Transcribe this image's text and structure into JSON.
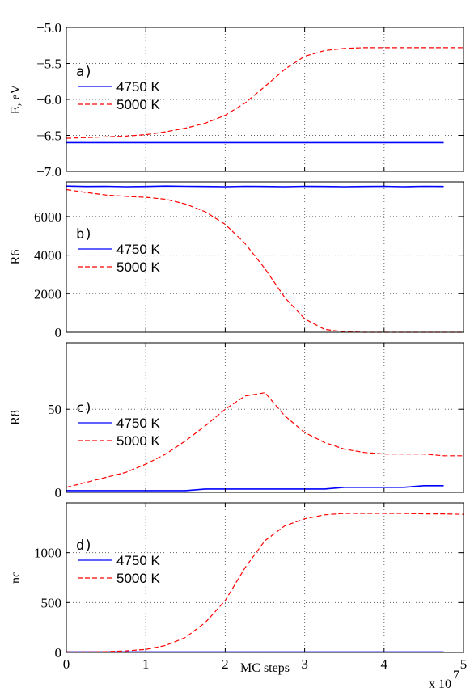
{
  "figure": {
    "xlabel": "MC steps",
    "x_multiplier": "x 10",
    "x_multiplier_exp": "7",
    "xlim": [
      0,
      5
    ],
    "xticks": [
      0,
      1,
      2,
      3,
      4,
      5
    ],
    "xtick_labels": [
      "0",
      "1",
      "2",
      "3",
      "4",
      "5"
    ],
    "legend_items": [
      "4750 K",
      "5000 K"
    ],
    "colors": {
      "4750 K": "#0000ff",
      "5000 K": "#ff0000"
    },
    "line_styles": {
      "4750 K": "solid",
      "5000 K": "dashed"
    },
    "grid": "dotted"
  },
  "chart_data": [
    {
      "type": "line",
      "panel_label": "a)",
      "ylabel": "E, eV",
      "ylim": [
        -7.0,
        -5.0
      ],
      "yticks": [
        -7.0,
        -6.5,
        -6.0,
        -5.5,
        -5.0
      ],
      "ytick_labels": [
        "−7.0",
        "−6.5",
        "−6.0",
        "−5.5",
        "−5.0"
      ],
      "legend": [
        "4750 K",
        "5000 K"
      ],
      "x": [
        0,
        0.25,
        0.5,
        0.75,
        1,
        1.25,
        1.5,
        1.75,
        2,
        2.25,
        2.5,
        2.75,
        3,
        3.25,
        3.5,
        3.75,
        4,
        4.25,
        4.5,
        4.75,
        5
      ],
      "series": [
        {
          "name": "4750 K",
          "values": [
            -6.6,
            -6.6,
            -6.6,
            -6.6,
            -6.6,
            -6.6,
            -6.6,
            -6.6,
            -6.6,
            -6.6,
            -6.6,
            -6.6,
            -6.6,
            -6.6,
            -6.6,
            -6.6,
            -6.6,
            -6.6,
            -6.6,
            -6.6,
            null
          ]
        },
        {
          "name": "5000 K",
          "values": [
            -6.54,
            -6.53,
            -6.52,
            -6.51,
            -6.49,
            -6.45,
            -6.4,
            -6.33,
            -6.22,
            -6.05,
            -5.82,
            -5.58,
            -5.4,
            -5.32,
            -5.29,
            -5.28,
            -5.28,
            -5.28,
            -5.28,
            -5.28,
            -5.28
          ]
        }
      ]
    },
    {
      "type": "line",
      "panel_label": "b)",
      "ylabel": "R6",
      "ylim": [
        0,
        7800
      ],
      "yticks": [
        0,
        2000,
        4000,
        6000
      ],
      "ytick_labels": [
        "0",
        "2000",
        "4000",
        "6000"
      ],
      "legend": [
        "4750 K",
        "5000 K"
      ],
      "x": [
        0,
        0.25,
        0.5,
        0.75,
        1,
        1.25,
        1.5,
        1.75,
        2,
        2.25,
        2.5,
        2.75,
        3,
        3.25,
        3.5,
        3.75,
        4,
        4.25,
        4.5,
        4.75,
        5
      ],
      "series": [
        {
          "name": "4750 K",
          "values": [
            7580,
            7560,
            7570,
            7550,
            7560,
            7580,
            7570,
            7560,
            7550,
            7570,
            7560,
            7550,
            7570,
            7560,
            7550,
            7560,
            7570,
            7550,
            7570,
            7560,
            null
          ]
        },
        {
          "name": "5000 K",
          "values": [
            7400,
            7250,
            7120,
            7050,
            7000,
            6900,
            6650,
            6250,
            5600,
            4600,
            3300,
            1800,
            700,
            150,
            20,
            0,
            0,
            0,
            0,
            0,
            0
          ]
        }
      ]
    },
    {
      "type": "line",
      "panel_label": "c)",
      "ylabel": "R8",
      "ylim": [
        0,
        90
      ],
      "yticks": [
        0,
        50
      ],
      "ytick_labels": [
        "0",
        "50"
      ],
      "legend": [
        "4750 K",
        "5000 K"
      ],
      "x": [
        0,
        0.25,
        0.5,
        0.75,
        1,
        1.25,
        1.5,
        1.75,
        2,
        2.25,
        2.5,
        2.75,
        3,
        3.25,
        3.5,
        3.75,
        4,
        4.25,
        4.5,
        4.75,
        5
      ],
      "series": [
        {
          "name": "4750 K",
          "values": [
            1,
            1,
            1,
            1,
            1,
            1,
            1,
            2,
            2,
            2,
            2,
            2,
            2,
            2,
            3,
            3,
            3,
            3,
            4,
            4,
            null
          ]
        },
        {
          "name": "5000 K",
          "values": [
            3,
            6,
            9,
            12,
            17,
            23,
            31,
            40,
            50,
            58,
            60,
            46,
            36,
            30,
            26,
            24,
            23,
            23,
            23,
            22,
            22
          ]
        }
      ]
    },
    {
      "type": "line",
      "panel_label": "d)",
      "ylabel": "nc",
      "ylim": [
        0,
        1500
      ],
      "yticks": [
        0,
        500,
        1000
      ],
      "ytick_labels": [
        "0",
        "500",
        "1000"
      ],
      "legend": [
        "4750 K",
        "5000 K"
      ],
      "x": [
        0,
        0.25,
        0.5,
        0.75,
        1,
        1.25,
        1.5,
        1.75,
        2,
        2.25,
        2.5,
        2.75,
        3,
        3.25,
        3.5,
        3.75,
        4,
        4.25,
        4.5,
        4.75,
        5
      ],
      "series": [
        {
          "name": "4750 K",
          "values": [
            5,
            5,
            5,
            5,
            5,
            5,
            5,
            5,
            5,
            5,
            5,
            5,
            5,
            5,
            5,
            5,
            5,
            5,
            5,
            5,
            null
          ]
        },
        {
          "name": "5000 K",
          "values": [
            5,
            5,
            7,
            15,
            30,
            70,
            150,
            300,
            520,
            850,
            1120,
            1270,
            1340,
            1380,
            1395,
            1395,
            1395,
            1395,
            1390,
            1390,
            1385
          ]
        }
      ]
    }
  ]
}
